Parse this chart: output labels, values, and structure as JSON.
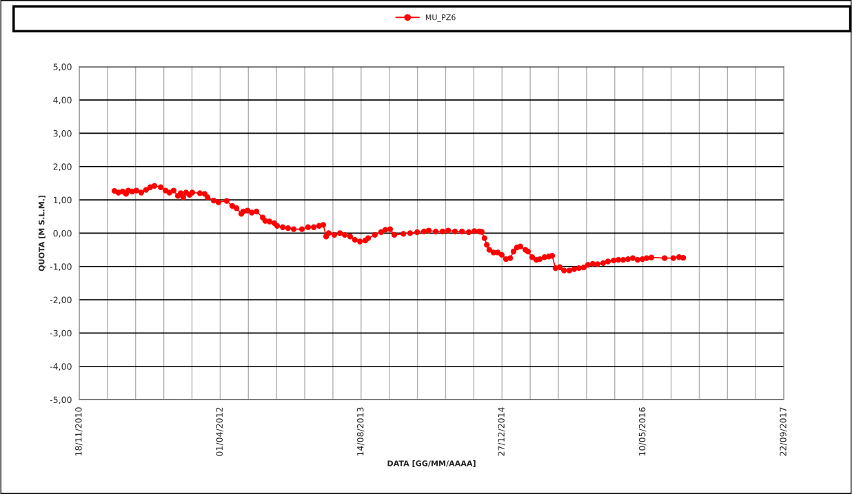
{
  "chart_data": {
    "type": "line",
    "xlabel": "DATA [GG/MM/AAAA]",
    "ylabel": "QUOTA [M S.L.M.]",
    "x": [
      "2011-03-23",
      "2011-04-06",
      "2011-04-21",
      "2011-05-03",
      "2011-05-11",
      "2011-05-25",
      "2011-06-09",
      "2011-06-26",
      "2011-07-13",
      "2011-07-28",
      "2011-08-12",
      "2011-09-03",
      "2011-09-20",
      "2011-10-04",
      "2011-10-19",
      "2011-11-03",
      "2011-11-13",
      "2011-11-22",
      "2011-12-02",
      "2011-12-14",
      "2011-12-24",
      "2012-01-20",
      "2012-02-06",
      "2012-02-16",
      "2012-03-09",
      "2012-03-26",
      "2012-04-24",
      "2012-05-14",
      "2012-05-29",
      "2012-06-15",
      "2012-06-22",
      "2012-07-07",
      "2012-07-22",
      "2012-08-08",
      "2012-08-30",
      "2012-09-08",
      "2012-09-23",
      "2012-10-10",
      "2012-10-20",
      "2012-11-09",
      "2012-11-28",
      "2012-12-18",
      "2013-01-16",
      "2013-02-07",
      "2013-02-27",
      "2013-03-18",
      "2013-04-02",
      "2013-04-12",
      "2013-04-21",
      "2013-05-11",
      "2013-05-31",
      "2013-06-17",
      "2013-07-06",
      "2013-07-23",
      "2013-08-10",
      "2013-08-29",
      "2013-09-08",
      "2013-10-02",
      "2013-10-24",
      "2013-11-08",
      "2013-11-25",
      "2013-12-10",
      "2014-01-11",
      "2014-02-04",
      "2014-03-01",
      "2014-03-25",
      "2014-04-11",
      "2014-05-06",
      "2014-05-30",
      "2014-06-19",
      "2014-07-13",
      "2014-08-07",
      "2014-08-31",
      "2014-09-20",
      "2014-10-07",
      "2014-10-16",
      "2014-10-26",
      "2014-11-03",
      "2014-11-12",
      "2014-11-27",
      "2014-12-12",
      "2014-12-26",
      "2015-01-10",
      "2015-01-25",
      "2015-02-06",
      "2015-02-18",
      "2015-03-02",
      "2015-03-20",
      "2015-03-29",
      "2015-04-13",
      "2015-04-28",
      "2015-05-10",
      "2015-05-27",
      "2015-06-11",
      "2015-06-23",
      "2015-07-05",
      "2015-07-20",
      "2015-08-04",
      "2015-08-23",
      "2015-09-09",
      "2015-09-26",
      "2015-10-13",
      "2015-10-28",
      "2015-11-14",
      "2015-12-01",
      "2015-12-21",
      "2016-01-07",
      "2016-01-27",
      "2016-02-13",
      "2016-03-01",
      "2016-03-18",
      "2016-04-04",
      "2016-04-21",
      "2016-05-08",
      "2016-05-23",
      "2016-06-09",
      "2016-07-26",
      "2016-08-26",
      "2016-09-15",
      "2016-09-30"
    ],
    "series": [
      {
        "name": "MU_PZ6",
        "color": "#ff0000",
        "values": [
          1.27,
          1.22,
          1.25,
          1.18,
          1.28,
          1.25,
          1.28,
          1.22,
          1.3,
          1.38,
          1.42,
          1.38,
          1.28,
          1.22,
          1.28,
          1.12,
          1.2,
          1.08,
          1.22,
          1.15,
          1.22,
          1.2,
          1.18,
          1.08,
          0.98,
          0.93,
          0.97,
          0.82,
          0.75,
          0.58,
          0.65,
          0.68,
          0.62,
          0.65,
          0.47,
          0.37,
          0.35,
          0.3,
          0.22,
          0.18,
          0.15,
          0.12,
          0.12,
          0.18,
          0.18,
          0.22,
          0.25,
          -0.1,
          0.0,
          -0.05,
          0.0,
          -0.05,
          -0.1,
          -0.2,
          -0.25,
          -0.22,
          -0.15,
          -0.05,
          0.03,
          0.1,
          0.12,
          -0.05,
          -0.02,
          0.0,
          0.03,
          0.05,
          0.08,
          0.05,
          0.05,
          0.08,
          0.05,
          0.05,
          0.03,
          0.06,
          0.05,
          0.04,
          -0.15,
          -0.35,
          -0.5,
          -0.58,
          -0.58,
          -0.65,
          -0.78,
          -0.75,
          -0.55,
          -0.43,
          -0.4,
          -0.5,
          -0.55,
          -0.72,
          -0.8,
          -0.78,
          -0.72,
          -0.7,
          -0.68,
          -1.05,
          -1.02,
          -1.12,
          -1.12,
          -1.08,
          -1.05,
          -1.03,
          -0.95,
          -0.92,
          -0.93,
          -0.9,
          -0.85,
          -0.82,
          -0.8,
          -0.8,
          -0.78,
          -0.75,
          -0.8,
          -0.78,
          -0.75,
          -0.73,
          -0.75,
          -0.75,
          -0.72,
          -0.74
        ]
      }
    ],
    "xlim": [
      "2010-11-18",
      "2017-09-22"
    ],
    "xticks": [
      {
        "value": "2010-11-18",
        "label": "18/11/2010"
      },
      {
        "value": "2011-02-26",
        "label": null
      },
      {
        "value": "2011-06-06",
        "label": null
      },
      {
        "value": "2011-09-14",
        "label": null
      },
      {
        "value": "2011-12-23",
        "label": null
      },
      {
        "value": "2012-04-01",
        "label": "01/04/2012"
      },
      {
        "value": "2012-07-10",
        "label": null
      },
      {
        "value": "2012-10-18",
        "label": null
      },
      {
        "value": "2013-01-26",
        "label": null
      },
      {
        "value": "2013-05-06",
        "label": null
      },
      {
        "value": "2013-08-14",
        "label": "14/08/2013"
      },
      {
        "value": "2013-11-22",
        "label": null
      },
      {
        "value": "2014-03-02",
        "label": null
      },
      {
        "value": "2014-06-10",
        "label": null
      },
      {
        "value": "2014-09-18",
        "label": null
      },
      {
        "value": "2014-12-27",
        "label": "27/12/2014"
      },
      {
        "value": "2015-04-06",
        "label": null
      },
      {
        "value": "2015-07-15",
        "label": null
      },
      {
        "value": "2015-10-23",
        "label": null
      },
      {
        "value": "2016-01-31",
        "label": null
      },
      {
        "value": "2016-05-10",
        "label": "10/05/2016"
      },
      {
        "value": "2016-08-18",
        "label": null
      },
      {
        "value": "2016-11-26",
        "label": null
      },
      {
        "value": "2017-03-06",
        "label": null
      },
      {
        "value": "2017-06-14",
        "label": null
      },
      {
        "value": "2017-09-22",
        "label": "22/09/2017"
      }
    ],
    "ylim": [
      -5,
      5
    ],
    "yticks": [
      {
        "value": -5,
        "label": "-5,00"
      },
      {
        "value": -4,
        "label": "-4,00"
      },
      {
        "value": -3,
        "label": "-3,00"
      },
      {
        "value": -2,
        "label": "-2,00"
      },
      {
        "value": -1,
        "label": "-1,00"
      },
      {
        "value": 0,
        "label": "0,00"
      },
      {
        "value": 1,
        "label": "1,00"
      },
      {
        "value": 2,
        "label": "2,00"
      },
      {
        "value": 3,
        "label": "3,00"
      },
      {
        "value": 4,
        "label": "4,00"
      },
      {
        "value": 5,
        "label": "5,00"
      }
    ],
    "grid": true,
    "legend": "top",
    "marker": "circle",
    "line_style": "solid"
  }
}
